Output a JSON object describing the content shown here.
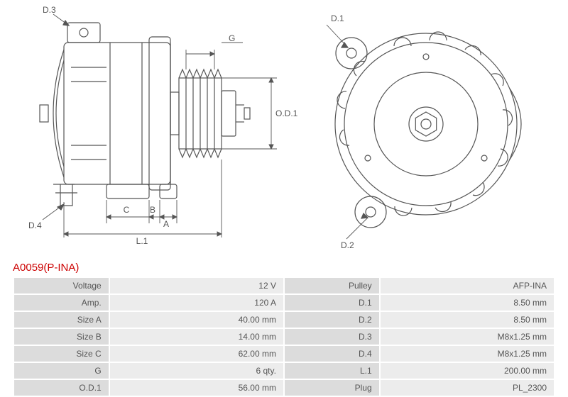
{
  "part_number": "A0059(P-INA)",
  "diagram_labels": {
    "D1": "D.1",
    "D2": "D.2",
    "D3": "D.3",
    "D4": "D.4",
    "G": "G",
    "OD1": "O.D.1",
    "A": "A",
    "B": "B",
    "C": "C",
    "L1": "L.1"
  },
  "specs": [
    {
      "left_label": "Voltage",
      "left_value": "12 V",
      "right_label": "Pulley",
      "right_value": "AFP-INA"
    },
    {
      "left_label": "Amp.",
      "left_value": "120 A",
      "right_label": "D.1",
      "right_value": "8.50 mm"
    },
    {
      "left_label": "Size A",
      "left_value": "40.00 mm",
      "right_label": "D.2",
      "right_value": "8.50 mm"
    },
    {
      "left_label": "Size B",
      "left_value": "14.00 mm",
      "right_label": "D.3",
      "right_value": "M8x1.25 mm"
    },
    {
      "left_label": "Size C",
      "left_value": "62.00 mm",
      "right_label": "D.4",
      "right_value": "M8x1.25 mm"
    },
    {
      "left_label": "G",
      "left_value": "6 qty.",
      "right_label": "L.1",
      "right_value": "200.00 mm"
    },
    {
      "left_label": "O.D.1",
      "left_value": "56.00 mm",
      "right_label": "Plug",
      "right_value": "PL_2300"
    }
  ],
  "colors": {
    "line": "#555555",
    "title": "#cc0000",
    "label_bg": "#dcdcdc",
    "value_bg": "#ececec",
    "border": "#ffffff"
  }
}
